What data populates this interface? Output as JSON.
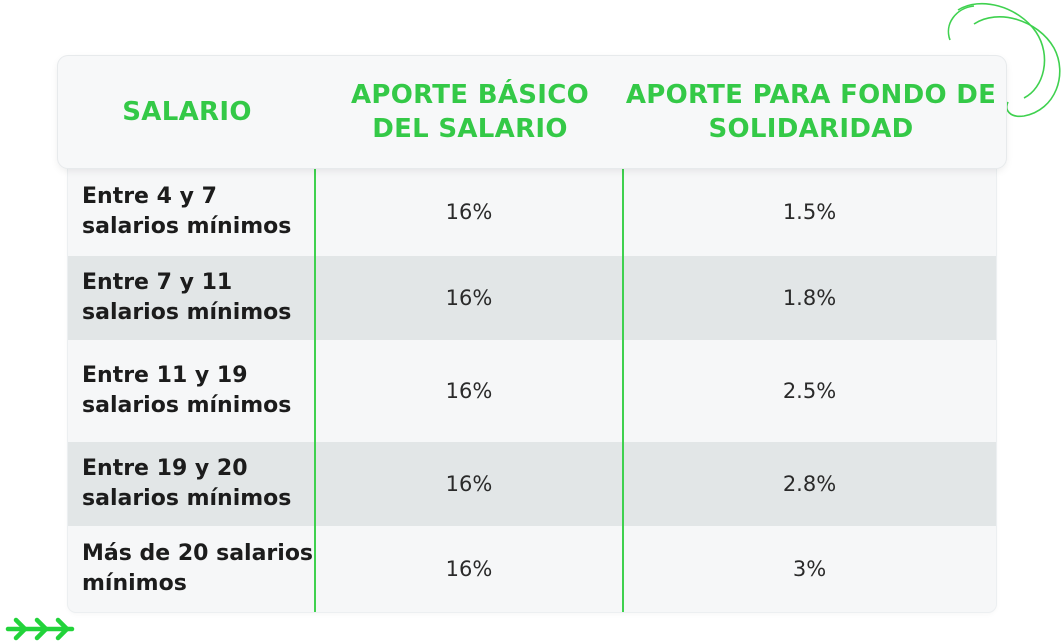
{
  "table": {
    "headers": {
      "salary": "SALARIO",
      "basic": "APORTE BÁSICO DEL SALARIO",
      "fund": "APORTE PARA FONDO DE SOLIDARIDAD"
    },
    "rows": [
      {
        "salary": "Entre 4 y 7 salarios mínimos",
        "basic": "16%",
        "fund": "1.5%"
      },
      {
        "salary": "Entre 7 y 11 salarios mínimos",
        "basic": "16%",
        "fund": "1.8%"
      },
      {
        "salary": "Entre 11 y 19 salarios mínimos",
        "basic": "16%",
        "fund": "2.5%"
      },
      {
        "salary": "Entre 19 y 20 salarios mínimos",
        "basic": "16%",
        "fund": "2.8%"
      },
      {
        "salary": "Más de 20 salarios mínimos",
        "basic": "16%",
        "fund": "3%"
      }
    ]
  },
  "colors": {
    "accent": "#34c947",
    "row_alt": "#e2e6e7",
    "row": "#f6f7f8"
  },
  "icons": {
    "top_right": "rings-outline-icon",
    "bottom_left": "chevrons-right-icon"
  }
}
